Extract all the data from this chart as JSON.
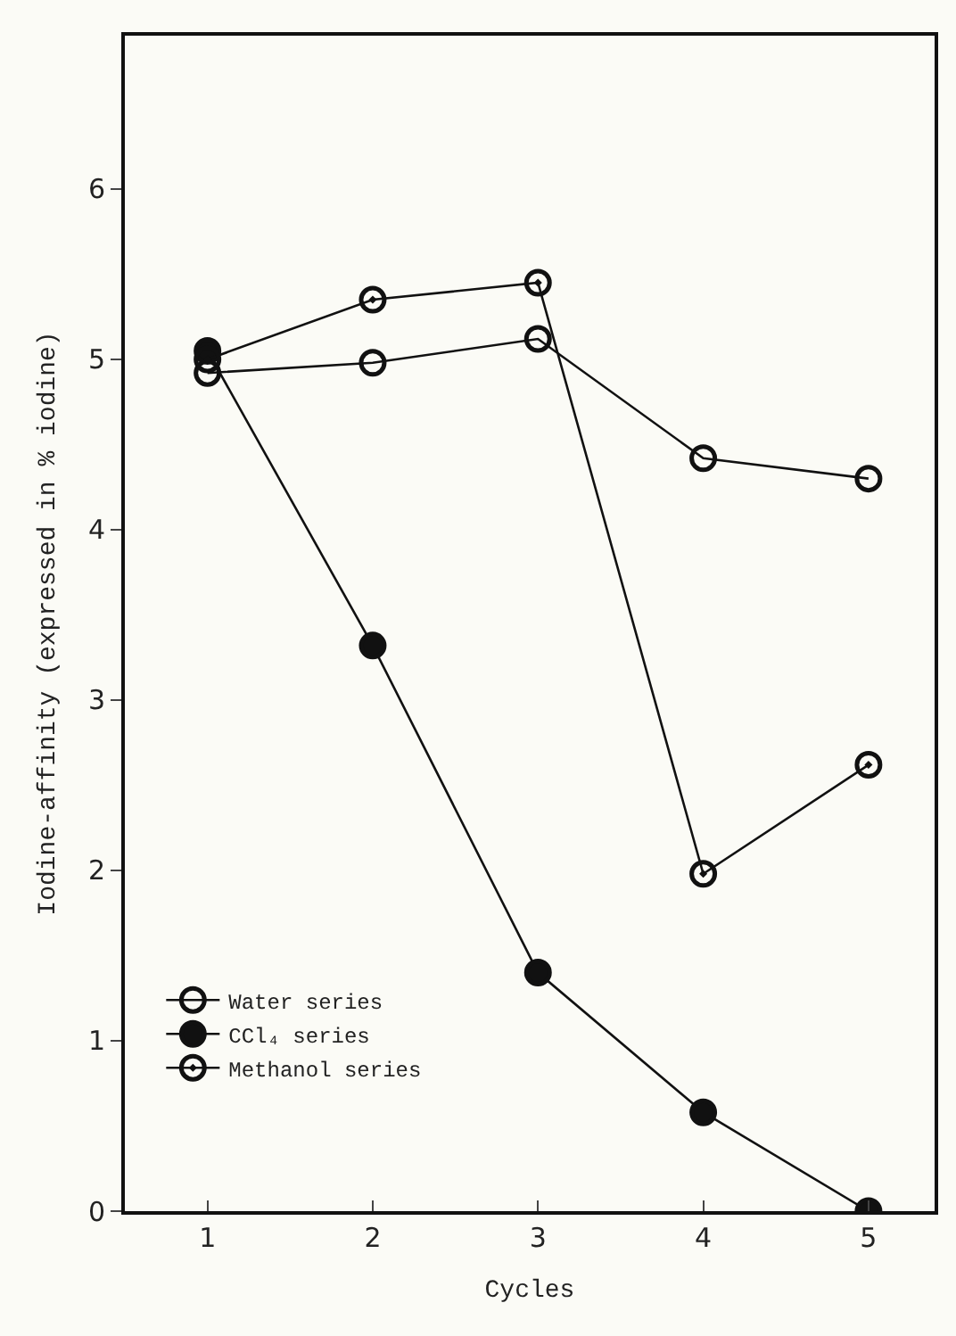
{
  "chart_data": {
    "type": "line",
    "xlabel": "Cycles",
    "ylabel": "Iodine-affinity (expressed in % iodine)",
    "x": [
      1,
      2,
      3,
      4,
      5
    ],
    "series": [
      {
        "name": "Water series",
        "color": "#111111",
        "marker": "circle-open",
        "values": [
          4.92,
          4.98,
          5.12,
          4.42,
          4.3
        ]
      },
      {
        "name": "CCl₄ series",
        "color": "#111111",
        "marker": "circle",
        "values": [
          5.05,
          3.32,
          1.4,
          0.58,
          0.0
        ]
      },
      {
        "name": "Methanol series",
        "color": "#111111",
        "marker": "circle-open-dot",
        "values": [
          5.0,
          5.35,
          5.45,
          1.98,
          2.62
        ]
      }
    ],
    "xlim": [
      0.5,
      5.4
    ],
    "ylim": [
      0,
      6.9
    ],
    "xticks": [
      1,
      2,
      3,
      4,
      5
    ],
    "yticks": [
      0,
      1,
      2,
      3,
      4,
      5,
      6
    ],
    "grid": false,
    "legend": "bottom left",
    "line_style": "solid"
  }
}
